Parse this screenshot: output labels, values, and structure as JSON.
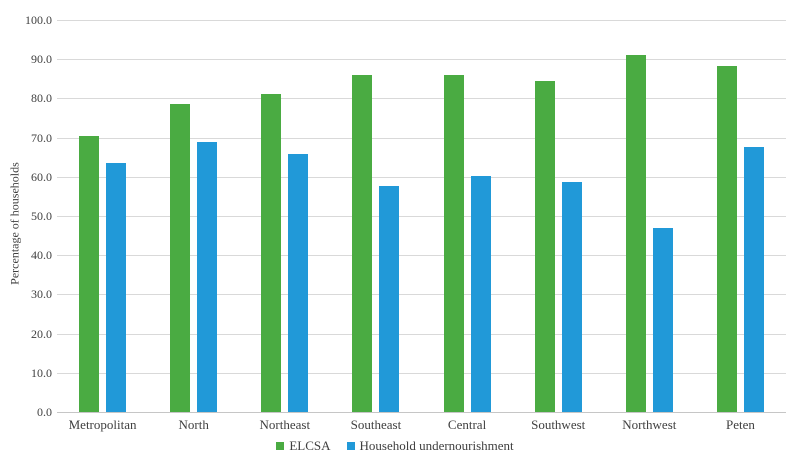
{
  "chart_data": {
    "type": "bar",
    "title": "",
    "xlabel": "",
    "ylabel": "Percentage of households",
    "ylim": [
      0,
      100
    ],
    "ytick_step": 10,
    "ytick_labels": [
      "0.0",
      "10.0",
      "20.0",
      "30.0",
      "40.0",
      "50.0",
      "60.0",
      "70.0",
      "80.0",
      "90.0",
      "100.0"
    ],
    "grid": "horizontal",
    "legend_position": "bottom-center",
    "categories": [
      "Metropolitan",
      "North",
      "Northeast",
      "Southeast",
      "Central",
      "Southwest",
      "Northwest",
      "Peten"
    ],
    "series": [
      {
        "name": "ELCSA",
        "color": "#4aab42",
        "values": [
          70.5,
          78.5,
          81.0,
          86.0,
          85.9,
          84.5,
          91.2,
          88.3
        ]
      },
      {
        "name": "Household undernourishment",
        "color": "#2199d8",
        "values": [
          63.5,
          69.0,
          65.7,
          57.7,
          60.3,
          58.7,
          46.9,
          67.6
        ]
      }
    ]
  },
  "colors": {
    "gridline": "#d9d9d9",
    "baseline": "#c6c6c6",
    "text": "#3f3f3f",
    "background": "#ffffff"
  }
}
